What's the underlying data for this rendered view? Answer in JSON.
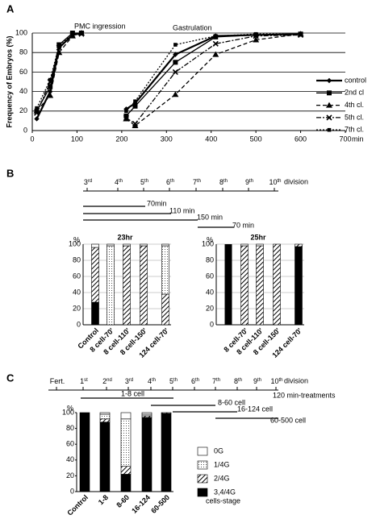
{
  "panel_labels": [
    "A",
    "B",
    "C"
  ],
  "chart_data": [
    {
      "type": "line",
      "y_label": "Frequency of Embryos (%)",
      "x_unit": "min",
      "annotations": [
        "PMC ingression",
        "Gastrulation"
      ],
      "xlim": [
        0,
        700
      ],
      "xticks": [
        0,
        100,
        200,
        300,
        400,
        500,
        600,
        700
      ],
      "ylim": [
        0,
        100
      ],
      "yticks": [
        0,
        20,
        40,
        60,
        80,
        100
      ],
      "grid": true,
      "series": [
        {
          "name": "control",
          "color": "#000000",
          "dash": "solid",
          "width": 2.2,
          "marker": "diamond",
          "x": [
            10,
            40,
            60,
            90,
            110,
            null,
            210,
            230,
            320,
            410,
            500,
            600
          ],
          "values": [
            12,
            40,
            85,
            98,
            100,
            null,
            22,
            28,
            78,
            97,
            98,
            99
          ]
        },
        {
          "name": "2nd cl",
          "color": "#000000",
          "dash": "solid",
          "width": 1.3,
          "marker": "square",
          "x": [
            10,
            40,
            60,
            90,
            110,
            null,
            210,
            230,
            320,
            410,
            500,
            600
          ],
          "values": [
            20,
            45,
            88,
            100,
            100,
            null,
            15,
            25,
            70,
            96,
            98,
            99
          ]
        },
        {
          "name": "4th cl.",
          "color": "#000000",
          "dash": "dash",
          "width": 1.3,
          "marker": "triangle",
          "x": [
            10,
            40,
            60,
            90,
            110,
            null,
            210,
            230,
            320,
            410,
            500,
            600
          ],
          "values": [
            20,
            36,
            80,
            97,
            100,
            null,
            12,
            5,
            37,
            78,
            93,
            99
          ]
        },
        {
          "name": "5th cl.",
          "color": "#000000",
          "dash": "dashdot",
          "width": 1.3,
          "marker": "x",
          "x": [
            10,
            40,
            60,
            90,
            110,
            null,
            210,
            230,
            320,
            410,
            500,
            600
          ],
          "values": [
            18,
            50,
            85,
            98,
            99,
            null,
            13,
            7,
            60,
            89,
            97,
            98
          ]
        },
        {
          "name": "7th cl.",
          "color": "#000000",
          "dash": "dot",
          "width": 1.3,
          "marker": "smallsquare",
          "x": [
            10,
            40,
            60,
            90,
            110,
            null,
            210,
            230,
            320,
            410,
            500,
            600
          ],
          "values": [
            23,
            52,
            88,
            98,
            100,
            null,
            20,
            30,
            88,
            97,
            99,
            99
          ]
        }
      ]
    },
    {
      "type": "stacked_bar",
      "title": "23hr",
      "y_unit": "%",
      "categories": [
        "Control",
        "8 cell-70'",
        "8 cell-110'",
        "8 cell-150'",
        "124 cell-70'"
      ],
      "ylim": [
        0,
        100
      ],
      "yticks": [
        0,
        20,
        40,
        60,
        80,
        100
      ],
      "grid": true,
      "series": [
        {
          "pattern": "solid",
          "values": [
            28,
            0,
            0,
            0,
            0
          ]
        },
        {
          "pattern": "hatch",
          "values": [
            68,
            0,
            98,
            98,
            38
          ]
        },
        {
          "pattern": "dots",
          "values": [
            0,
            98,
            0,
            0,
            60
          ]
        },
        {
          "pattern": "white",
          "values": [
            4,
            2,
            2,
            2,
            2
          ]
        }
      ]
    },
    {
      "type": "stacked_bar",
      "title": "25hr",
      "y_unit": "%",
      "categories": [
        "8 cell-70'",
        "8 cell-110'",
        "8 cell-150'",
        "124 cell-70'"
      ],
      "ylim": [
        0,
        100
      ],
      "yticks": [
        0,
        20,
        40,
        60,
        80,
        100
      ],
      "grid": true,
      "series": [
        {
          "pattern": "solid",
          "values": [
            0,
            0,
            0,
            97
          ]
        },
        {
          "pattern": "hatch",
          "values": [
            98,
            98,
            100,
            3
          ]
        },
        {
          "pattern": "dots",
          "values": [
            0,
            0,
            0,
            0
          ]
        },
        {
          "pattern": "white",
          "values": [
            2,
            2,
            0,
            0
          ]
        }
      ],
      "extra_bar": {
        "values": [
          100
        ]
      }
    },
    {
      "type": "stacked_bar",
      "y_unit": "%",
      "x_label": "cells-stage",
      "categories": [
        "Control",
        "1-8",
        "8-60",
        "16-124",
        "60-500"
      ],
      "ylim": [
        0,
        100
      ],
      "yticks": [
        0,
        20,
        40,
        60,
        80,
        100
      ],
      "grid": false,
      "series": [
        {
          "name": "3,4/4G",
          "pattern": "solid",
          "values": [
            100,
            88,
            22,
            94,
            99
          ]
        },
        {
          "name": "2/4G",
          "pattern": "hatch",
          "values": [
            0,
            4,
            10,
            2,
            1
          ]
        },
        {
          "name": "1/4G",
          "pattern": "dots",
          "values": [
            0,
            6,
            60,
            2,
            0
          ]
        },
        {
          "name": "0G",
          "pattern": "white",
          "values": [
            0,
            2,
            8,
            2,
            0
          ]
        }
      ]
    }
  ],
  "timelines": [
    {
      "divisions": [
        {
          "num": "3",
          "sup": "rd"
        },
        {
          "num": "4",
          "sup": "th"
        },
        {
          "num": "5",
          "sup": "th"
        },
        {
          "num": "6",
          "sup": "th"
        },
        {
          "num": "7",
          "sup": "th"
        },
        {
          "num": "8",
          "sup": "th"
        },
        {
          "num": "9",
          "sup": "th"
        },
        {
          "num": "10",
          "sup": "th"
        }
      ],
      "suffix": "division",
      "treatments": [
        "70min",
        "110 min",
        "150 min",
        "70 min"
      ]
    },
    {
      "divisions": [
        {
          "num": "Fert."
        },
        {
          "num": "1",
          "sup": "st"
        },
        {
          "num": "2",
          "sup": "nd"
        },
        {
          "num": "3",
          "sup": "rd"
        },
        {
          "num": "4",
          "sup": "th"
        },
        {
          "num": "5",
          "sup": "th"
        },
        {
          "num": "6",
          "sup": "th"
        },
        {
          "num": "7",
          "sup": "th"
        },
        {
          "num": "8",
          "sup": "th"
        },
        {
          "num": "9",
          "sup": "th"
        },
        {
          "num": "10",
          "sup": "th"
        }
      ],
      "suffix": "division",
      "treatments": [
        "1-8 cell",
        "8-60 cell",
        "16-124 cell",
        "60-500 cell"
      ],
      "note": "120 min-treatments"
    }
  ]
}
